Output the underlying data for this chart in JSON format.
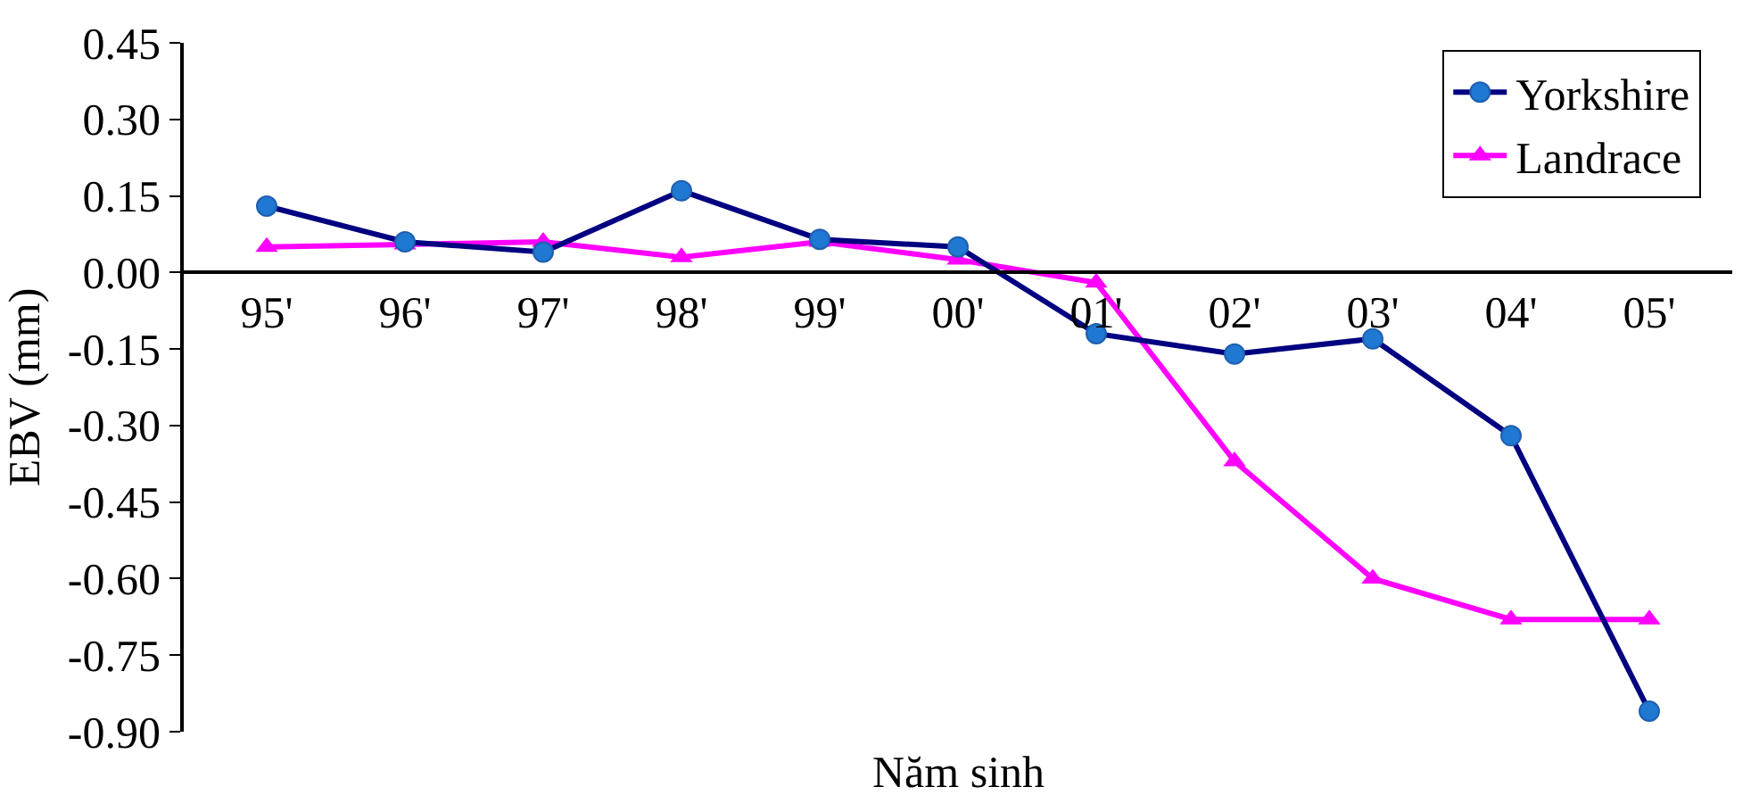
{
  "chart_data": {
    "type": "line",
    "xlabel": "Năm sinh",
    "ylabel": "EBV (mm)",
    "categories": [
      "95'",
      "96'",
      "97'",
      "98'",
      "99'",
      "00'",
      "01'",
      "02'",
      "03'",
      "04'",
      "05'"
    ],
    "series": [
      {
        "name": "Yorkshire",
        "color": "#000080",
        "marker": "circle",
        "values": [
          0.13,
          0.06,
          0.04,
          0.16,
          0.065,
          0.05,
          -0.12,
          -0.16,
          -0.13,
          -0.32,
          -0.86
        ]
      },
      {
        "name": "Landrace",
        "color": "#ff00ff",
        "marker": "triangle",
        "values": [
          0.05,
          0.055,
          0.06,
          0.03,
          0.06,
          0.025,
          -0.02,
          -0.37,
          -0.6,
          -0.68,
          -0.68
        ]
      }
    ],
    "ylim": [
      -0.9,
      0.45
    ],
    "yticks": [
      {
        "value": 0.45,
        "label": "0.45"
      },
      {
        "value": 0.3,
        "label": "0.30"
      },
      {
        "value": 0.15,
        "label": "0.15"
      },
      {
        "value": 0,
        "label": "0.00"
      },
      {
        "value": -0.15,
        "label": "-0.15"
      },
      {
        "value": -0.3,
        "label": "-0.30"
      },
      {
        "value": -0.45,
        "label": "-0.45"
      },
      {
        "value": -0.6,
        "label": "-0.60"
      },
      {
        "value": -0.75,
        "label": "-0.75"
      },
      {
        "value": -0.9,
        "label": "-0.90"
      }
    ],
    "grid": false,
    "legend": "top right",
    "line_style": "solid"
  }
}
